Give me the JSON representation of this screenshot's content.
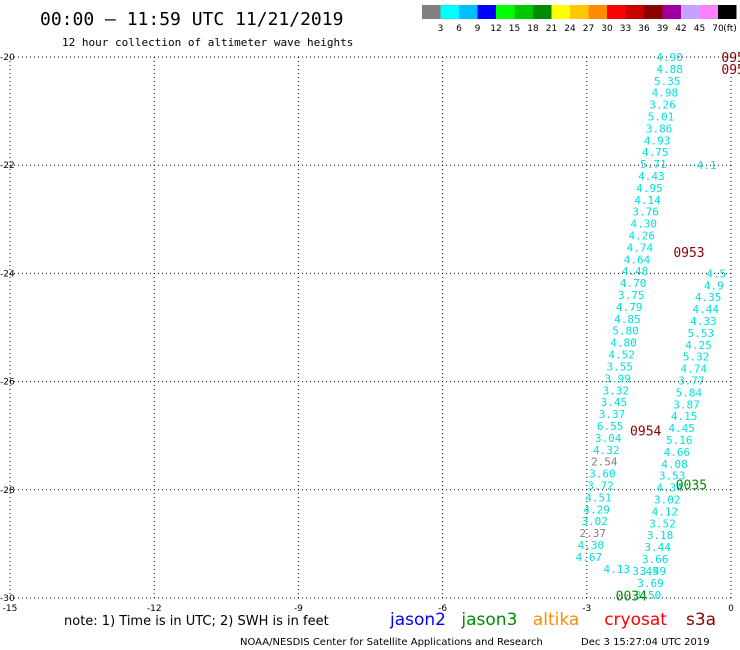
{
  "header": {
    "title": "00:00 – 11:59 UTC 11/21/2019",
    "subtitle": "12 hour collection of altimeter wave heights"
  },
  "colorbar": {
    "labels": [
      "3",
      "6",
      "9",
      "12",
      "15",
      "18",
      "21",
      "24",
      "27",
      "30",
      "33",
      "36",
      "39",
      "42",
      "45",
      "70"
    ],
    "unit": "(ft)",
    "colors": [
      "#808080",
      "#00ffff",
      "#00bfff",
      "#0000ff",
      "#00ff00",
      "#00c800",
      "#008c00",
      "#ffff00",
      "#ffc800",
      "#ff8c00",
      "#ff0000",
      "#c80000",
      "#8c0000",
      "#a000a0",
      "#c8a0ff",
      "#ff80ff",
      "#000000"
    ]
  },
  "footer": {
    "note": "note: 1) Time is in UTC; 2) SWH is in feet",
    "legend": [
      {
        "name": "jason2",
        "color": "#0000ff"
      },
      {
        "name": "jason3",
        "color": "#008c00"
      },
      {
        "name": "altika",
        "color": "#ff8c00"
      },
      {
        "name": "cryosat",
        "color": "#ff0000"
      },
      {
        "name": "s3a",
        "color": "#8c0000"
      }
    ],
    "credit": "NOAA/NESDIS Center for Satellite Applications and Research",
    "timestamp": "Dec  3 15:27:04 UTC 2019"
  },
  "chart_data": {
    "type": "scatter",
    "xlim": [
      -15,
      0
    ],
    "ylim": [
      -30,
      -20
    ],
    "xticks": [
      -15,
      -12,
      -9,
      -6,
      -3,
      0
    ],
    "yticks": [
      -20,
      -22,
      -24,
      -26,
      -28,
      -30
    ],
    "grid": true,
    "series": [
      {
        "color": "#00e0e0",
        "points": [
          [
            -1.0,
            -20.0,
            "4.90"
          ],
          [
            -1.0,
            -20.22,
            "4.88"
          ],
          [
            -1.05,
            -20.44,
            "5.35"
          ],
          [
            -1.1,
            -20.66,
            "4.98"
          ],
          [
            -1.15,
            -20.88,
            "3.26"
          ],
          [
            -1.18,
            -21.1,
            "5.01"
          ],
          [
            -1.22,
            -21.32,
            "3.86"
          ],
          [
            -1.26,
            -21.54,
            "4.93"
          ],
          [
            -1.3,
            -21.76,
            "4.75"
          ],
          [
            -1.34,
            -21.98,
            "5.71"
          ],
          [
            -1.38,
            -22.2,
            "4.43"
          ],
          [
            -1.42,
            -22.42,
            "4.95"
          ],
          [
            -1.46,
            -22.64,
            "4.14"
          ],
          [
            -1.5,
            -22.86,
            "3.76"
          ],
          [
            -1.54,
            -23.08,
            "4.30"
          ],
          [
            -1.58,
            -23.3,
            "4.26"
          ],
          [
            -1.62,
            -23.52,
            "4.74"
          ],
          [
            -1.68,
            -23.74,
            "4.64"
          ],
          [
            -1.72,
            -23.96,
            "4.48"
          ],
          [
            -1.76,
            -24.18,
            "4.70"
          ],
          [
            -1.8,
            -24.4,
            "3.75"
          ],
          [
            -1.84,
            -24.62,
            "4.79"
          ],
          [
            -1.88,
            -24.84,
            "4.85"
          ],
          [
            -1.92,
            -25.06,
            "5.80"
          ],
          [
            -1.96,
            -25.28,
            "4.80"
          ],
          [
            -2.0,
            -25.5,
            "4.52"
          ],
          [
            -2.04,
            -25.72,
            "3.55"
          ],
          [
            -2.08,
            -25.94,
            "3.99"
          ],
          [
            -2.12,
            -26.16,
            "3.32"
          ],
          [
            -2.16,
            -26.38,
            "3.45"
          ],
          [
            -2.2,
            -26.6,
            "3.37"
          ],
          [
            -2.24,
            -26.82,
            "6.55"
          ],
          [
            -2.28,
            -27.04,
            "3.04"
          ],
          [
            -2.32,
            -27.26,
            "4.32"
          ],
          [
            -2.36,
            -27.48,
            "2.54"
          ],
          [
            -2.4,
            -27.7,
            "3.60"
          ],
          [
            -2.44,
            -27.92,
            "3.72"
          ],
          [
            -2.48,
            -28.14,
            "4.51"
          ],
          [
            -2.52,
            -28.36,
            "4.29"
          ],
          [
            -2.56,
            -28.58,
            "3.02"
          ],
          [
            -2.6,
            -28.8,
            "2.37"
          ],
          [
            -2.64,
            -29.02,
            "4.30"
          ],
          [
            -2.68,
            -29.24,
            "4.67"
          ],
          [
            -2.1,
            -29.46,
            "4.13"
          ]
        ]
      },
      {
        "color": "#00e0e0",
        "points": [
          [
            -0.3,
            -22.0,
            "4.1"
          ],
          [
            -0.1,
            -24.0,
            "4.5"
          ],
          [
            -0.15,
            -24.22,
            "4.9"
          ],
          [
            -0.2,
            -24.44,
            "4.35"
          ],
          [
            -0.25,
            -24.66,
            "4.44"
          ],
          [
            -0.3,
            -24.88,
            "4.33"
          ],
          [
            -0.35,
            -25.1,
            "5.53"
          ],
          [
            -0.4,
            -25.32,
            "4.25"
          ],
          [
            -0.45,
            -25.54,
            "5.32"
          ],
          [
            -0.5,
            -25.76,
            "4.74"
          ],
          [
            -0.55,
            -25.98,
            "3.77"
          ],
          [
            -0.6,
            -26.2,
            "5.84"
          ],
          [
            -0.65,
            -26.42,
            "3.87"
          ],
          [
            -0.7,
            -26.64,
            "4.15"
          ],
          [
            -0.75,
            -26.86,
            "4.45"
          ],
          [
            -0.8,
            -27.08,
            "5.16"
          ],
          [
            -0.85,
            -27.3,
            "4.66"
          ],
          [
            -0.9,
            -27.52,
            "4.08"
          ],
          [
            -0.95,
            -27.74,
            "3.53"
          ],
          [
            -1.0,
            -27.96,
            "4.34"
          ],
          [
            -1.05,
            -28.18,
            "3.02"
          ],
          [
            -1.1,
            -28.4,
            "4.12"
          ],
          [
            -1.15,
            -28.62,
            "3.52"
          ],
          [
            -1.2,
            -28.84,
            "3.18"
          ],
          [
            -1.25,
            -29.06,
            "3.44"
          ],
          [
            -1.3,
            -29.28,
            "3.66"
          ],
          [
            -1.35,
            -29.5,
            "3.49"
          ],
          [
            -1.4,
            -29.72,
            "3.69"
          ],
          [
            -1.45,
            -29.94,
            "3.50"
          ],
          [
            -1.5,
            -29.5,
            "3.45"
          ]
        ]
      }
    ],
    "pass_labels": [
      {
        "x": -0.2,
        "y": -20.0,
        "text": "095",
        "color": "#8c0000"
      },
      {
        "x": -0.2,
        "y": -20.22,
        "text": "095",
        "color": "#8c0000"
      },
      {
        "x": -1.2,
        "y": -23.6,
        "text": "0953",
        "color": "#8c0000"
      },
      {
        "x": -2.1,
        "y": -26.9,
        "text": "0954",
        "color": "#8c0000"
      },
      {
        "x": -1.15,
        "y": -27.9,
        "text": "0035",
        "color": "#008c00"
      },
      {
        "x": -2.4,
        "y": -29.95,
        "text": "0034",
        "color": "#008c00"
      }
    ]
  }
}
